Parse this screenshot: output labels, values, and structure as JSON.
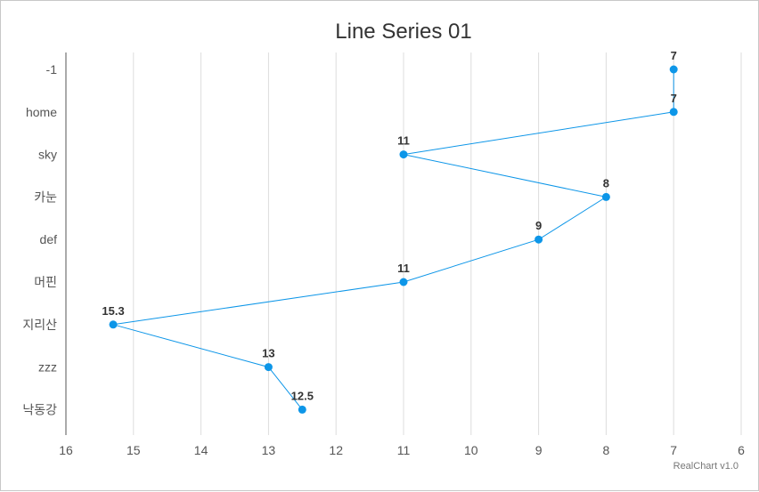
{
  "chart_data": {
    "type": "line",
    "orientation": "horizontal",
    "title": "Line Series 01",
    "categories": [
      "-1",
      "home",
      "sky",
      "카눈",
      "def",
      "머핀",
      "지리산",
      "zzz",
      "낙동강"
    ],
    "series": [
      {
        "values": [
          7,
          7,
          11,
          8,
          9,
          11,
          15.3,
          13,
          12.5
        ],
        "color": "#0d96e8"
      }
    ],
    "value_axis": {
      "min": 6,
      "max": 16,
      "reversed": true,
      "ticks": [
        16,
        15,
        14,
        13,
        12,
        11,
        10,
        9,
        8,
        7,
        6
      ]
    },
    "grid": true,
    "data_labels": true,
    "credit": "RealChart v1.0"
  }
}
